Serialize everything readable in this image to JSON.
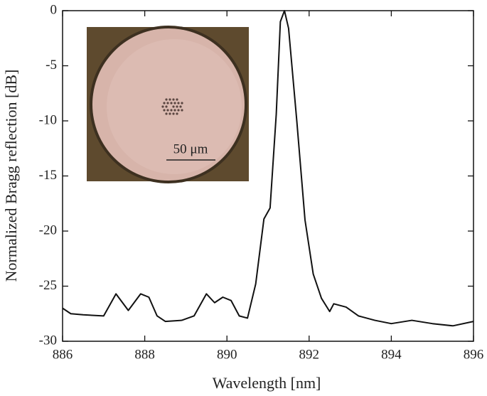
{
  "chart_data": {
    "type": "line",
    "xlabel": "Wavelength [nm]",
    "ylabel": "Normalized Bragg reflection [dB]",
    "inset_label": "50 μm",
    "x": [
      886.0,
      886.2,
      886.5,
      887.0,
      887.3,
      887.6,
      887.9,
      888.1,
      888.3,
      888.5,
      888.9,
      889.2,
      889.5,
      889.7,
      889.9,
      890.1,
      890.3,
      890.5,
      890.7,
      890.9,
      891.05,
      891.2,
      891.3,
      891.4,
      891.5,
      891.7,
      891.9,
      892.1,
      892.3,
      892.5,
      892.6,
      892.9,
      893.2,
      893.6,
      894.0,
      894.5,
      895.0,
      895.5,
      896.0
    ],
    "series": [
      {
        "color": "#111111",
        "values": [
          -27.0,
          -27.5,
          -27.6,
          -27.7,
          -25.7,
          -27.2,
          -25.7,
          -26.0,
          -27.7,
          -28.2,
          -28.1,
          -27.7,
          -25.7,
          -26.5,
          -26.0,
          -26.3,
          -27.7,
          -27.9,
          -24.8,
          -18.9,
          -17.9,
          -9.4,
          -1.0,
          0,
          -1.6,
          -10.0,
          -19.0,
          -23.9,
          -26.1,
          -27.3,
          -26.6,
          -26.9,
          -27.7,
          -28.1,
          -28.4,
          -28.1,
          -28.4,
          -28.6,
          -28.2
        ]
      }
    ],
    "xlim": [
      886,
      896
    ],
    "xticks": [
      886,
      888,
      890,
      892,
      894,
      896
    ],
    "ylim": [
      -30,
      0
    ],
    "yticks": [
      0,
      -5,
      -10,
      -15,
      -20,
      -25,
      -30
    ]
  }
}
